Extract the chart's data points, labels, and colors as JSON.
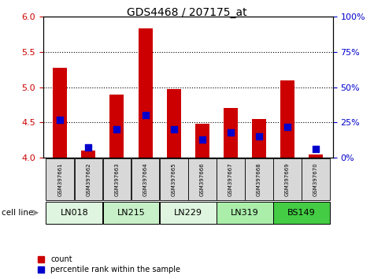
{
  "title": "GDS4468 / 207175_at",
  "samples": [
    "GSM397661",
    "GSM397662",
    "GSM397663",
    "GSM397664",
    "GSM397665",
    "GSM397666",
    "GSM397667",
    "GSM397668",
    "GSM397669",
    "GSM397670"
  ],
  "cell_line_groups": [
    {
      "label": "LN018",
      "span": [
        0,
        2
      ],
      "color": "#dff5df"
    },
    {
      "label": "LN215",
      "span": [
        2,
        4
      ],
      "color": "#c8f0c8"
    },
    {
      "label": "LN229",
      "span": [
        4,
        6
      ],
      "color": "#dff5df"
    },
    {
      "label": "LN319",
      "span": [
        6,
        8
      ],
      "color": "#aaeeaa"
    },
    {
      "label": "BS149",
      "span": [
        8,
        10
      ],
      "color": "#44cc44"
    }
  ],
  "count_values": [
    5.28,
    4.1,
    4.9,
    5.83,
    4.97,
    4.48,
    4.71,
    4.55,
    5.1,
    4.04
  ],
  "percentile_values": [
    27,
    7,
    20,
    30,
    20,
    13,
    18,
    15,
    22,
    6
  ],
  "ylim_left": [
    4.0,
    6.0
  ],
  "ylim_right": [
    0,
    100
  ],
  "yticks_left": [
    4.0,
    4.5,
    5.0,
    5.5,
    6.0
  ],
  "yticks_right": [
    0,
    25,
    50,
    75,
    100
  ],
  "bar_color": "#cc0000",
  "dot_color": "#0000cc",
  "bar_width": 0.5,
  "dot_size": 28,
  "left_axis_color": "#cc0000",
  "right_axis_color": "#0000cc",
  "title_fontsize": 10,
  "tick_fontsize": 8,
  "sample_fontsize": 5,
  "cellline_fontsize": 8,
  "legend_fontsize": 7
}
